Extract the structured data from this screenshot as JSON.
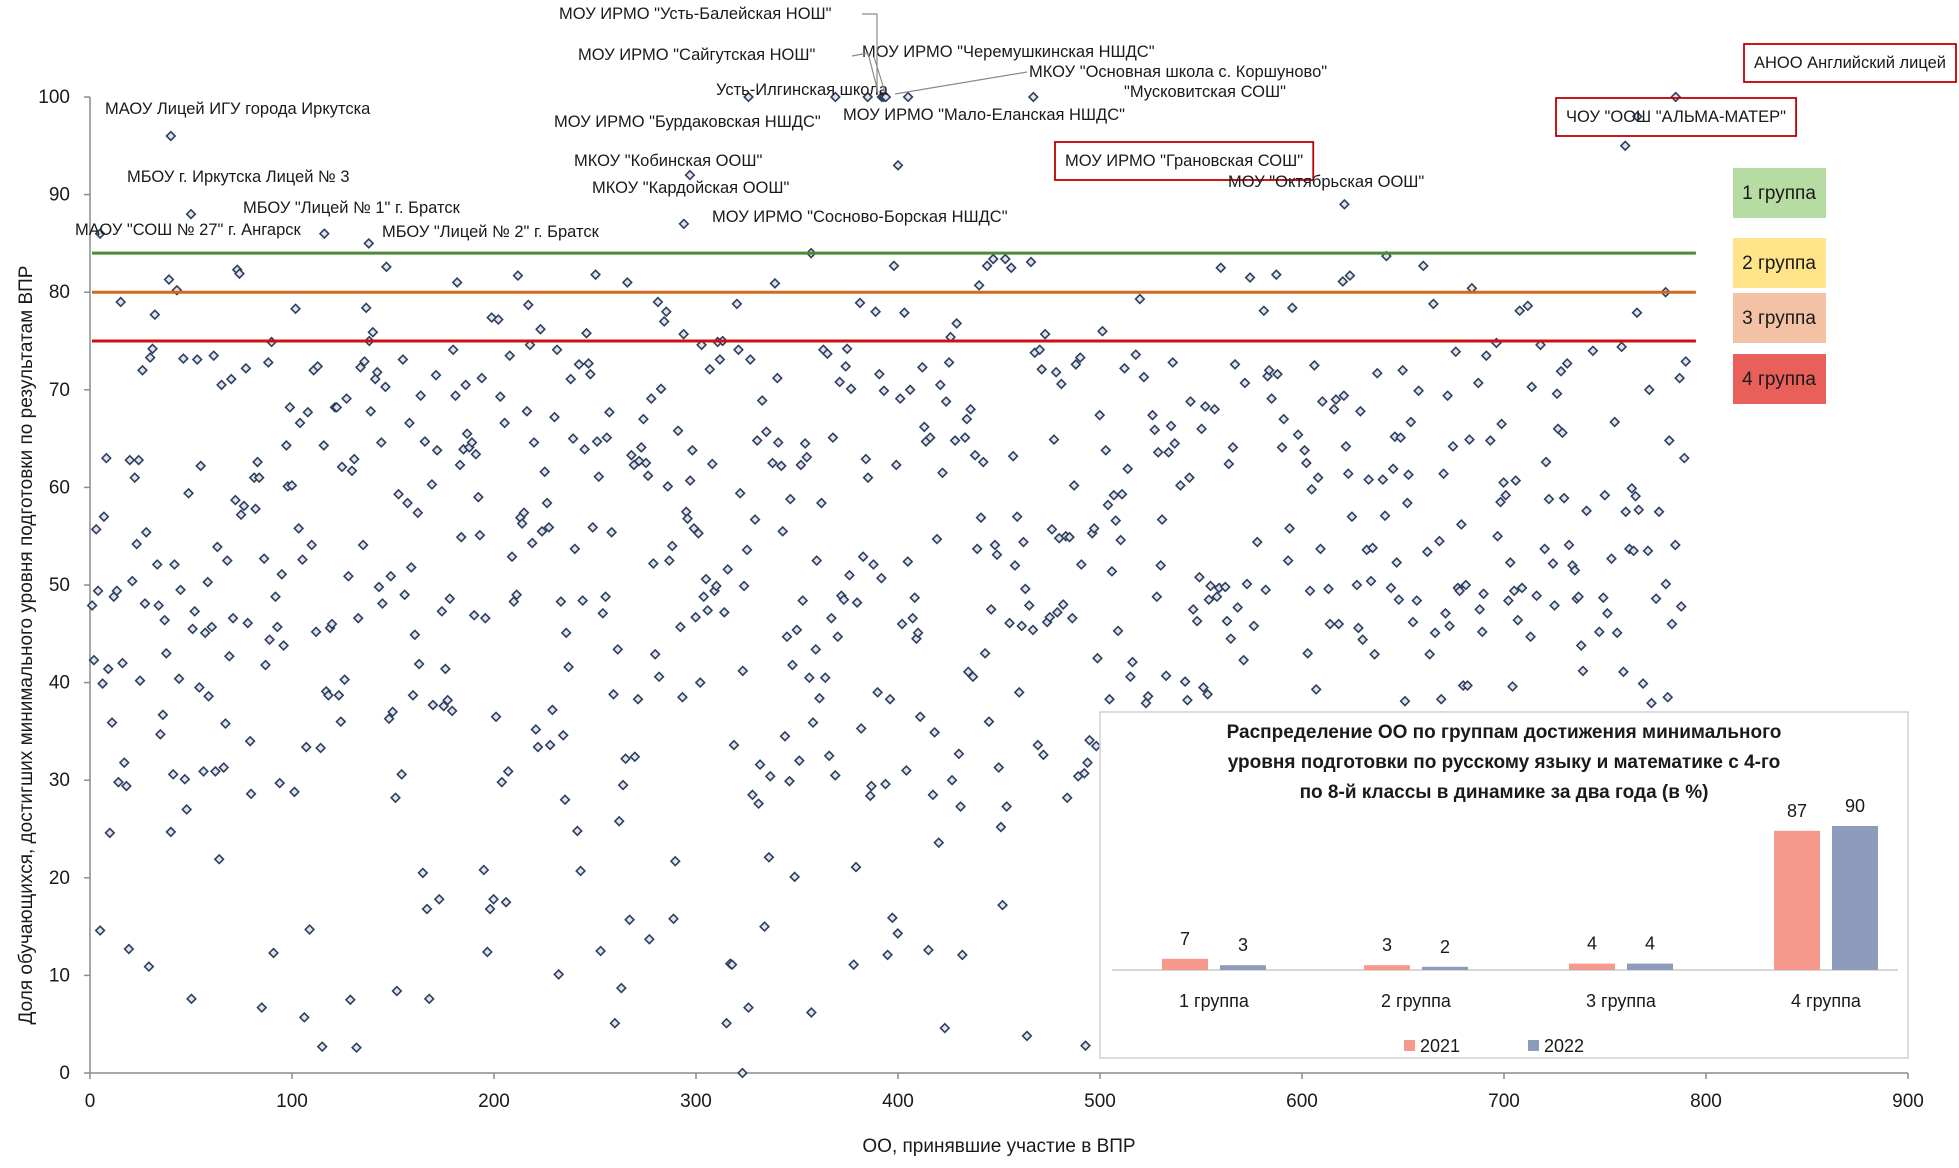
{
  "chart_data": [
    {
      "type": "scatter",
      "title": "",
      "xlabel": "ОО, принявшие участие в ВПР",
      "ylabel": "Доля обучающихся, достигших минимального уровня подготовки по результатам ВПР",
      "xlim": [
        0,
        900
      ],
      "ylim": [
        0,
        100
      ],
      "x_ticks": [
        0,
        100,
        200,
        300,
        400,
        500,
        600,
        700,
        800,
        900
      ],
      "y_ticks": [
        0,
        10,
        20,
        30,
        40,
        50,
        60,
        70,
        80,
        90,
        100
      ],
      "grid": false,
      "marker_color": "#2e3f5c",
      "thresholds": [
        {
          "value": 84,
          "color": "#4c8a34"
        },
        {
          "value": 80,
          "color": "#d2691e"
        },
        {
          "value": 75,
          "color": "#d01010"
        }
      ],
      "group_legend": [
        {
          "label": "1 группа",
          "color": "#b7dca3"
        },
        {
          "label": "2 группа",
          "color": "#ffe48a"
        },
        {
          "label": "3 группа",
          "color": "#f3c2a5"
        },
        {
          "label": "4 группа",
          "color": "#e9605a"
        }
      ],
      "annotations": [
        {
          "text": "МОУ ИРМО \"Усть-Балейская НОШ\"",
          "x": 392,
          "y": 100,
          "boxed": false
        },
        {
          "text": "МОУ ИРМО \"Сайгутская НОШ\"",
          "x": 385,
          "y": 100,
          "boxed": false
        },
        {
          "text": "МОУ ИРМО \"Черемушкинская НШДС\"",
          "x": 393,
          "y": 100,
          "boxed": false
        },
        {
          "text": "МКОУ \"Основная школа с. Коршуново\"",
          "x": 394,
          "y": 100,
          "boxed": false
        },
        {
          "text": "Усть-Илгинская школа",
          "x": 326,
          "y": 100,
          "boxed": false
        },
        {
          "text": "\"Мусковитская СОШ\"",
          "x": 467,
          "y": 100,
          "boxed": false
        },
        {
          "text": "АНОО Английский лицей",
          "x": 785,
          "y": 100,
          "boxed": true
        },
        {
          "text": "МАОУ Лицей ИГУ города Иркутска",
          "x": 40,
          "y": 96,
          "boxed": false
        },
        {
          "text": "МОУ ИРМО \"Бурдаковская НШДС\"",
          "x": 369,
          "y": 100,
          "boxed": false
        },
        {
          "text": "МОУ ИРМО \"Мало-Еланская НШДС\"",
          "x": 405,
          "y": 100,
          "boxed": false
        },
        {
          "text": "ЧОУ \"ООШ \"АЛЬМА-МАТЕР\"",
          "x": 766,
          "y": 98,
          "boxed": true
        },
        {
          "text": "МКОУ \"Кобинская ООШ\"",
          "x": 297,
          "y": 92,
          "boxed": false
        },
        {
          "text": "МОУ ИРМО \"Грановская СОШ\"",
          "x": 400,
          "y": 93,
          "boxed": true
        },
        {
          "text": "МБОУ г. Иркутска Лицей № 3",
          "x": 50,
          "y": 88,
          "boxed": false
        },
        {
          "text": "МКОУ \"Кардойская ООШ\"",
          "x": 294,
          "y": 87,
          "boxed": false
        },
        {
          "text": "МОУ \"Октябрьская ООШ\"",
          "x": 621,
          "y": 89,
          "boxed": false
        },
        {
          "text": "МБОУ \"Лицей № 1\" г. Братск",
          "x": 116,
          "y": 86,
          "boxed": false
        },
        {
          "text": "МОУ ИРМО \"Сосново-Борская НШДС\"",
          "x": 357,
          "y": 84,
          "boxed": false
        },
        {
          "text": "МАОУ \"СОШ  № 27\" г. Ангарск",
          "x": 5,
          "y": 86,
          "boxed": false
        },
        {
          "text": "МБОУ \"Лицей № 2\" г. Братск",
          "x": 138,
          "y": 85,
          "boxed": false
        }
      ]
    },
    {
      "type": "bar",
      "title": "Распределение ОО по группам достижения минимального уровня подготовки по русскому языку и математике с 4-го по 8-й классы в динамике за два года (в %)",
      "title_lines": [
        "Распределение ОО по группам достижения минимального",
        "уровня подготовки по русскому языку и математике с 4-го",
        "по 8-й классы в динамике за два года (в %)"
      ],
      "categories": [
        "1 группа",
        "2 группа",
        "3 группа",
        "4 группа"
      ],
      "series": [
        {
          "name": "2021",
          "values": [
            7,
            3,
            4,
            87
          ],
          "color": "#f4998c"
        },
        {
          "name": "2022",
          "values": [
            3,
            2,
            4,
            90
          ],
          "color": "#8e9cbb"
        }
      ],
      "legend_position": "bottom",
      "ylim": [
        0,
        100
      ]
    }
  ]
}
